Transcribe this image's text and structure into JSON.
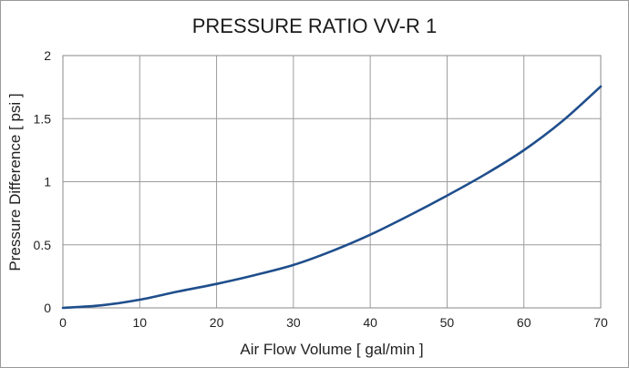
{
  "chart_data": {
    "type": "line",
    "title": "PRESSURE RATIO VV-R 1",
    "xlabel": "Air Flow Volume [ gal/min ]",
    "ylabel": "Pressure Difference [ psi ]",
    "xlim": [
      0,
      70
    ],
    "ylim": [
      0,
      2
    ],
    "x_ticks": [
      "0",
      "10",
      "20",
      "30",
      "40",
      "50",
      "60",
      "70"
    ],
    "y_ticks": [
      "0",
      "0.5",
      "1",
      "1.5",
      "2"
    ],
    "grid": true,
    "legend": "none",
    "series": [
      {
        "color": "#1f4e8c",
        "x": [
          0,
          5,
          10,
          15,
          20,
          25,
          30,
          35,
          40,
          45,
          50,
          55,
          60,
          65,
          70
        ],
        "y": [
          0.0,
          0.02,
          0.065,
          0.13,
          0.19,
          0.26,
          0.34,
          0.45,
          0.58,
          0.73,
          0.89,
          1.06,
          1.25,
          1.48,
          1.755
        ]
      }
    ]
  }
}
